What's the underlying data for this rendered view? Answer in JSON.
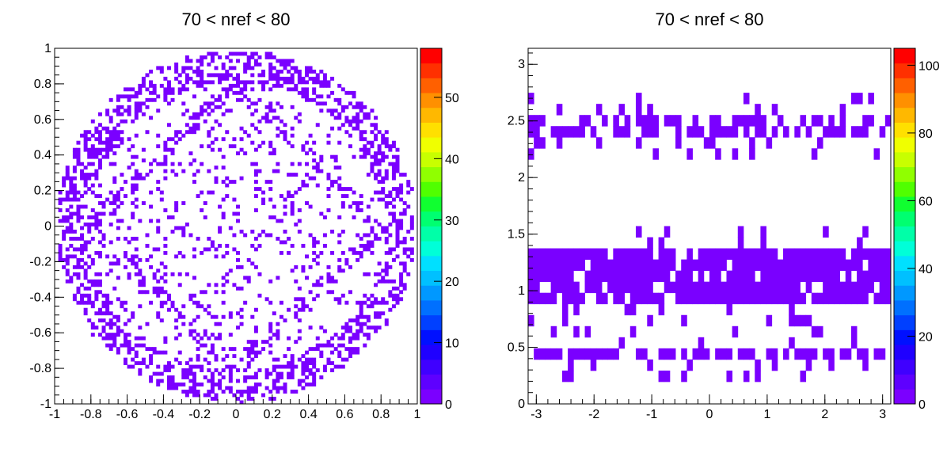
{
  "chart_data": [
    {
      "type": "heatmap",
      "title": "70 < nref < 80",
      "xlabel": "",
      "ylabel": "",
      "xlim": [
        -1,
        1
      ],
      "ylim": [
        -1,
        1
      ],
      "x_ticks": [
        "-1",
        "-0.8",
        "-0.6",
        "-0.4",
        "-0.2",
        "0",
        "0.2",
        "0.4",
        "0.6",
        "0.8",
        "1"
      ],
      "y_ticks": [
        "-1",
        "-0.8",
        "-0.6",
        "-0.4",
        "-0.2",
        "0",
        "0.2",
        "0.4",
        "0.6",
        "0.8",
        "1"
      ],
      "z_range": [
        0,
        58
      ],
      "z_ticks": [
        "0",
        "10",
        "20",
        "30",
        "40",
        "50"
      ],
      "bins": [
        100,
        100
      ],
      "pattern": "circular ring of radius ~0.9 plus inner diamond |x|+|y|~0.8 and sparse interior; all bins near z=1",
      "cell_color": "#7a00ff"
    },
    {
      "type": "heatmap",
      "title": "70 < nref < 80",
      "xlabel": "",
      "ylabel": "",
      "xlim": [
        -3.14159,
        3.14159
      ],
      "ylim": [
        0,
        3.14159
      ],
      "x_ticks": [
        "-3",
        "-2",
        "-1",
        "0",
        "1",
        "2",
        "3"
      ],
      "y_ticks": [
        "0",
        "0.5",
        "1",
        "1.5",
        "2",
        "2.5",
        "3"
      ],
      "z_range": [
        0,
        105
      ],
      "z_ticks": [
        "0",
        "20",
        "40",
        "60",
        "80",
        "100"
      ],
      "bins": [
        64,
        32
      ],
      "bands": [
        {
          "y_center": 0.45,
          "half_width": 0.06,
          "density": 0.55
        },
        {
          "y_center": 1.12,
          "half_width": 0.22,
          "density": 0.85
        },
        {
          "y_center": 2.45,
          "half_width": 0.1,
          "density": 0.6
        }
      ],
      "cell_color": "#7a00ff"
    }
  ],
  "palette": [
    "#7b00ff",
    "#5e00ff",
    "#3f00ff",
    "#1f00ff",
    "#0010ff",
    "#0040ff",
    "#0070ff",
    "#0098ff",
    "#00c0ff",
    "#00e0ff",
    "#00ffd8",
    "#00ffa8",
    "#00ff70",
    "#10ff30",
    "#50ff00",
    "#90ff00",
    "#c8ff00",
    "#f0ff00",
    "#ffe000",
    "#ffb800",
    "#ff9000",
    "#ff6000",
    "#ff3000",
    "#ff0000"
  ]
}
